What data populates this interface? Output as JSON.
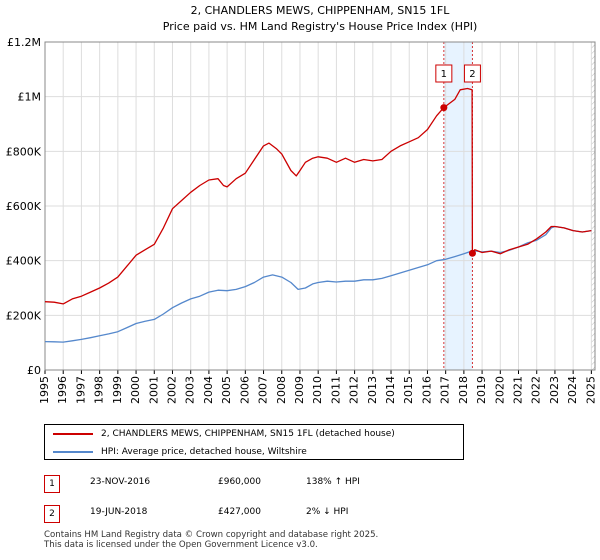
{
  "chart_data": {
    "type": "line",
    "title": "2, CHANDLERS MEWS, CHIPPENHAM, SN15 1FL",
    "subtitle": "Price paid vs. HM Land Registry's House Price Index (HPI)",
    "x_range": [
      1995,
      2025.2
    ],
    "ylim": [
      0,
      1200000
    ],
    "y_ticks": [
      {
        "value": 0,
        "label": "£0"
      },
      {
        "value": 200000,
        "label": "£200K"
      },
      {
        "value": 400000,
        "label": "£400K"
      },
      {
        "value": 600000,
        "label": "£600K"
      },
      {
        "value": 800000,
        "label": "£800K"
      },
      {
        "value": 1000000,
        "label": "£1M"
      },
      {
        "value": 1200000,
        "label": "£1.2M"
      }
    ],
    "x_ticks": [
      "1995",
      "1996",
      "1997",
      "1998",
      "1999",
      "2000",
      "2001",
      "2002",
      "2003",
      "2004",
      "2005",
      "2006",
      "2007",
      "2008",
      "2009",
      "2010",
      "2011",
      "2012",
      "2013",
      "2014",
      "2015",
      "2016",
      "2017",
      "2018",
      "2019",
      "2020",
      "2021",
      "2022",
      "2023",
      "2024",
      "2025"
    ],
    "series": [
      {
        "name": "2, CHANDLERS MEWS, CHIPPENHAM, SN15 1FL (detached house)",
        "color": "#cc0000",
        "x": [
          1995.0,
          1995.5,
          1996.0,
          1996.5,
          1997.0,
          1997.5,
          1998.0,
          1998.5,
          1999.0,
          1999.5,
          2000.0,
          2000.5,
          2001.0,
          2001.5,
          2002.0,
          2002.5,
          2003.0,
          2003.5,
          2004.0,
          2004.5,
          2004.8,
          2005.0,
          2005.5,
          2006.0,
          2006.5,
          2007.0,
          2007.3,
          2007.7,
          2008.0,
          2008.5,
          2008.8,
          2009.0,
          2009.3,
          2009.7,
          2010.0,
          2010.5,
          2011.0,
          2011.5,
          2012.0,
          2012.5,
          2013.0,
          2013.5,
          2014.0,
          2014.5,
          2015.0,
          2015.5,
          2016.0,
          2016.5,
          2016.9,
          2017.2,
          2017.5,
          2017.8,
          2018.2,
          2018.45,
          2018.47,
          2018.6,
          2019.0,
          2019.5,
          2020.0,
          2020.5,
          2021.0,
          2021.5,
          2022.0,
          2022.5,
          2022.8,
          2023.0,
          2023.5,
          2024.0,
          2024.5,
          2025.0
        ],
        "values": [
          250000,
          248000,
          242000,
          260000,
          270000,
          285000,
          300000,
          318000,
          340000,
          380000,
          420000,
          440000,
          460000,
          520000,
          590000,
          620000,
          650000,
          675000,
          695000,
          700000,
          675000,
          670000,
          700000,
          720000,
          770000,
          820000,
          830000,
          810000,
          790000,
          730000,
          710000,
          730000,
          760000,
          775000,
          780000,
          775000,
          760000,
          775000,
          760000,
          770000,
          765000,
          770000,
          800000,
          820000,
          835000,
          850000,
          880000,
          930000,
          960000,
          975000,
          990000,
          1025000,
          1030000,
          1025000,
          427000,
          440000,
          430000,
          435000,
          425000,
          440000,
          450000,
          460000,
          480000,
          505000,
          525000,
          525000,
          520000,
          510000,
          505000,
          510000
        ]
      },
      {
        "name": "HPI: Average price, detached house, Wiltshire",
        "color": "#5588cc",
        "x": [
          1995.0,
          1995.5,
          1996.0,
          1996.5,
          1997.0,
          1997.5,
          1998.0,
          1998.5,
          1999.0,
          1999.5,
          2000.0,
          2000.5,
          2001.0,
          2001.5,
          2002.0,
          2002.5,
          2003.0,
          2003.5,
          2004.0,
          2004.5,
          2005.0,
          2005.5,
          2006.0,
          2006.5,
          2007.0,
          2007.5,
          2008.0,
          2008.5,
          2008.9,
          2009.3,
          2009.7,
          2010.0,
          2010.5,
          2011.0,
          2011.5,
          2012.0,
          2012.5,
          2013.0,
          2013.5,
          2014.0,
          2014.5,
          2015.0,
          2015.5,
          2016.0,
          2016.5,
          2017.0,
          2017.5,
          2018.0,
          2018.5,
          2019.0,
          2019.5,
          2020.0,
          2020.5,
          2021.0,
          2021.5,
          2022.0,
          2022.5,
          2022.8,
          2023.0,
          2023.5,
          2024.0,
          2024.5,
          2025.0
        ],
        "values": [
          104000,
          103000,
          102000,
          107000,
          112000,
          118000,
          125000,
          132000,
          140000,
          155000,
          170000,
          178000,
          185000,
          205000,
          228000,
          245000,
          260000,
          270000,
          285000,
          292000,
          290000,
          295000,
          305000,
          320000,
          340000,
          348000,
          340000,
          320000,
          295000,
          300000,
          315000,
          320000,
          325000,
          322000,
          325000,
          325000,
          330000,
          330000,
          335000,
          345000,
          355000,
          365000,
          375000,
          385000,
          400000,
          405000,
          415000,
          425000,
          437000,
          432000,
          435000,
          430000,
          438000,
          450000,
          465000,
          475000,
          495000,
          520000,
          525000,
          520000,
          510000,
          505000,
          510000
        ]
      }
    ],
    "sales": [
      {
        "id": "1",
        "x": 2016.9,
        "value": 960000
      },
      {
        "id": "2",
        "x": 2018.47,
        "value": 427000
      }
    ],
    "shaded_region": [
      2016.9,
      2018.47
    ],
    "hatched_from": 2025.0
  },
  "legend": {
    "property": "2, CHANDLERS MEWS, CHIPPENHAM, SN15 1FL (detached house)",
    "hpi": "HPI: Average price, detached house, Wiltshire"
  },
  "transactions": [
    {
      "id": "1",
      "date": "23-NOV-2016",
      "price": "£960,000",
      "hpi": "138% ↑ HPI"
    },
    {
      "id": "2",
      "date": "19-JUN-2018",
      "price": "£427,000",
      "hpi": "2% ↓ HPI"
    }
  ],
  "footer": {
    "line1": "Contains HM Land Registry data © Crown copyright and database right 2025.",
    "line2": "This data is licensed under the Open Government Licence v3.0."
  },
  "colors": {
    "property": "#cc0000",
    "hpi": "#5588cc",
    "shade": "#ddeeff",
    "grid": "#dddddd"
  }
}
